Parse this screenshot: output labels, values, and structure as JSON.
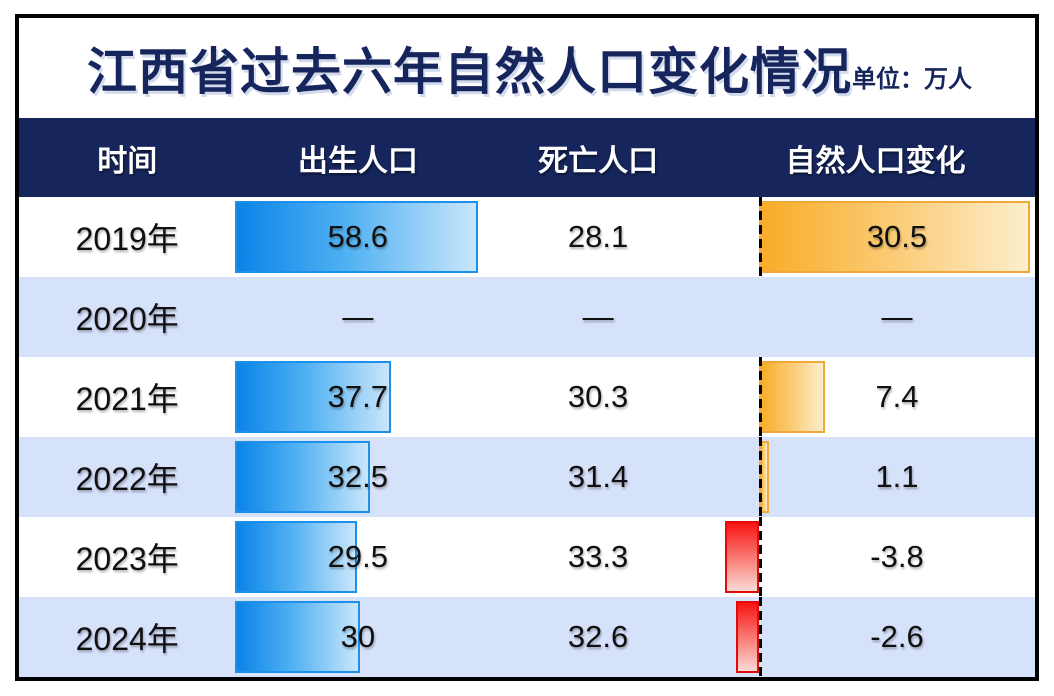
{
  "title": "江西省过去六年自然人口变化情况",
  "unit_label": "单位：万人",
  "columns": {
    "time": "时间",
    "birth": "出生人口",
    "death": "死亡人口",
    "change": "自然人口变化"
  },
  "rows": [
    {
      "year": "2019年",
      "birth": "58.6",
      "death": "28.1",
      "change": "30.5",
      "birth_val": 58.6,
      "change_val": 30.5
    },
    {
      "year": "2020年",
      "birth": "—",
      "death": "—",
      "change": "—",
      "birth_val": null,
      "change_val": null
    },
    {
      "year": "2021年",
      "birth": "37.7",
      "death": "30.3",
      "change": "7.4",
      "birth_val": 37.7,
      "change_val": 7.4
    },
    {
      "year": "2022年",
      "birth": "32.5",
      "death": "31.4",
      "change": "1.1",
      "birth_val": 32.5,
      "change_val": 1.1
    },
    {
      "year": "2023年",
      "birth": "29.5",
      "death": "33.3",
      "change": "-3.8",
      "birth_val": 29.5,
      "change_val": -3.8
    },
    {
      "year": "2024年",
      "birth": "30",
      "death": "32.6",
      "change": "-2.6",
      "birth_val": 30,
      "change_val": -2.6
    }
  ],
  "colors": {
    "navy_header": "#16265C",
    "row_alt_blue": "#D6E1FA",
    "birth_bar_start": "#0A84E8",
    "birth_bar_end": "#C9E6FB",
    "birth_bar_border": "#1E90EA",
    "positive_bar_start": "#F8AC28",
    "positive_bar_end": "#FDEECD",
    "positive_bar_border": "#F0A83A",
    "negative_bar_start": "#F81414",
    "negative_bar_end": "#FBDAD6",
    "negative_bar_border": "#E30A0A",
    "zero_axis": "#000000",
    "card_border": "#000000"
  },
  "scales": {
    "birth_max": 58.6,
    "birth_max_pct": 99,
    "change_max": 30.5,
    "change_max_pct": 85,
    "axis_left_pct": 13.5
  },
  "chart_data": {
    "type": "bar",
    "title": "江西省过去六年自然人口变化情况",
    "unit": "万人",
    "categories": [
      "2019年",
      "2020年",
      "2021年",
      "2022年",
      "2023年",
      "2024年"
    ],
    "series": [
      {
        "name": "出生人口",
        "values": [
          58.6,
          null,
          37.7,
          32.5,
          29.5,
          30
        ]
      },
      {
        "name": "死亡人口",
        "values": [
          28.1,
          null,
          30.3,
          31.4,
          33.3,
          32.6
        ]
      },
      {
        "name": "自然人口变化",
        "values": [
          30.5,
          null,
          7.4,
          1.1,
          -3.8,
          -2.6
        ]
      }
    ],
    "missing_value_marker": "—",
    "layout": "table-with-inline-horizontal-bars, zero axis dashed line in change column, positive bars orange to the right, negative bars red to the left"
  }
}
